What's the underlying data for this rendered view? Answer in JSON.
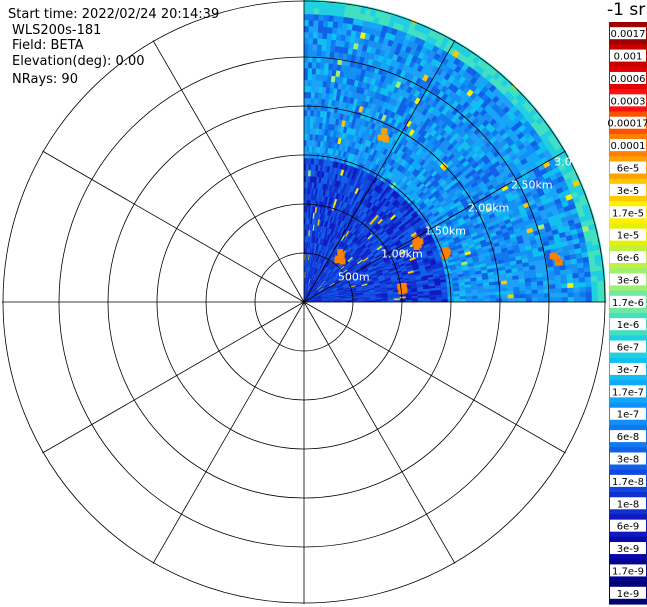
{
  "header": {
    "start_time": "Start time: 2022/02/24 20:14:39",
    "instrument": "WLS200s-181",
    "field": "Field: BETA",
    "elevation": "Elevation(deg): 0.00",
    "nrays": "NRays: 90"
  },
  "colorbar": {
    "title": "-1 sr",
    "labels": [
      "0.0017",
      "0.001",
      "0.0006",
      "0.0003",
      "0.00017",
      "0.0001",
      "6e-5",
      "3e-5",
      "1.7e-5",
      "1e-5",
      "6e-6",
      "3e-6",
      "1.7e-6",
      "1e-6",
      "6e-7",
      "3e-7",
      "1.7e-7",
      "1e-7",
      "6e-8",
      "3e-8",
      "1.7e-8",
      "1e-8",
      "6e-9",
      "3e-9",
      "1.7e-9",
      "1e-9"
    ],
    "colors": [
      "#a00000",
      "#c80000",
      "#e00000",
      "#ff1010",
      "#ff5000",
      "#ff8000",
      "#ffa000",
      "#ffc800",
      "#fff000",
      "#e6f000",
      "#c0f040",
      "#a0f070",
      "#70e8a0",
      "#40e0c0",
      "#20d0e0",
      "#10c0f0",
      "#10a8f8",
      "#1090f8",
      "#1078f0",
      "#1060e8",
      "#1048e0",
      "#1030d0",
      "#1018c0",
      "#0808a8",
      "#040490",
      "#020270"
    ]
  },
  "chart_data": {
    "type": "heatmap",
    "projection": "polar (PPI scan)",
    "range_ring_labels": [
      "500m",
      "1.00km",
      "1.50km",
      "2.00km",
      "2.50km",
      "3.0"
    ],
    "azimuth_coverage_deg": [
      0,
      90
    ],
    "field": "BETA",
    "units": "m-1 sr-1",
    "color_scale": "log",
    "value_range": [
      1e-09,
      0.0017
    ],
    "typical_background": 3e-08,
    "hotspots": [
      {
        "range_km": 1.3,
        "azimuth_deg": 62,
        "value": 0.0001
      },
      {
        "range_km": 1.55,
        "azimuth_deg": 72,
        "value": 0.0001
      },
      {
        "range_km": 2.6,
        "azimuth_deg": 80,
        "value": 0.0001
      },
      {
        "range_km": 0.6,
        "azimuth_deg": 40,
        "value": 0.0001
      },
      {
        "range_km": 1.9,
        "azimuth_deg": 26,
        "value": 6e-05
      },
      {
        "range_km": 1.0,
        "azimuth_deg": 82,
        "value": 0.0001
      }
    ]
  }
}
